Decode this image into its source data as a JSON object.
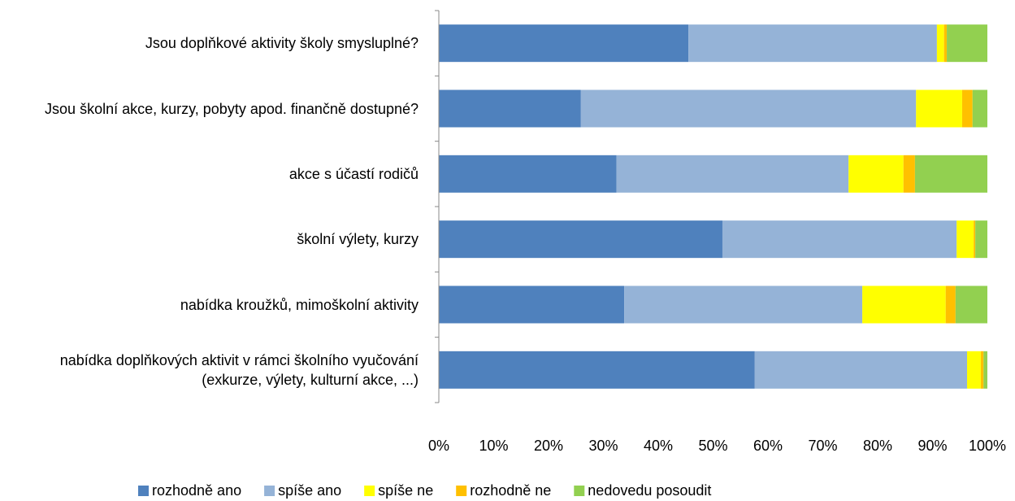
{
  "chart_data": {
    "type": "stacked-barh",
    "categories": [
      "Jsou doplňkové aktivity školy smysluplné?",
      "Jsou školní akce, kurzy, pobyty apod. finančně dostupné?",
      "akce s účastí rodičů",
      "školní výlety, kurzy",
      "nabídka kroužků, mimoškolní aktivity",
      "nabídka doplňkových aktivit v rámci školního vyučování (exkurze, výlety, kulturní akce, ...)"
    ],
    "series": [
      {
        "name": "rozhodně ano",
        "color": "#4f81bd",
        "values": [
          45.5,
          25.9,
          32.4,
          51.7,
          33.8,
          57.6
        ]
      },
      {
        "name": "spíše ano",
        "color": "#95b3d7",
        "values": [
          45.3,
          61.1,
          42.3,
          42.7,
          43.4,
          38.7
        ]
      },
      {
        "name": "spíše ne",
        "color": "#ffff00",
        "values": [
          1.3,
          8.4,
          10.0,
          3.1,
          15.2,
          2.5
        ]
      },
      {
        "name": "rozhodně ne",
        "color": "#ffc000",
        "values": [
          0.5,
          1.9,
          2.1,
          0.3,
          1.8,
          0.5
        ]
      },
      {
        "name": "nedovedu posoudit",
        "color": "#92d050",
        "values": [
          7.4,
          2.7,
          13.2,
          2.2,
          5.8,
          0.7
        ]
      }
    ],
    "xlim": [
      0,
      100
    ],
    "xticks": [
      {
        "value": 0,
        "label": "0%"
      },
      {
        "value": 10,
        "label": "10%"
      },
      {
        "value": 20,
        "label": "20%"
      },
      {
        "value": 30,
        "label": "30%"
      },
      {
        "value": 40,
        "label": "40%"
      },
      {
        "value": 50,
        "label": "50%"
      },
      {
        "value": 60,
        "label": "60%"
      },
      {
        "value": 70,
        "label": "70%"
      },
      {
        "value": 80,
        "label": "80%"
      },
      {
        "value": 90,
        "label": "90%"
      },
      {
        "value": 100,
        "label": "100%"
      }
    ],
    "legend": "bottom"
  }
}
